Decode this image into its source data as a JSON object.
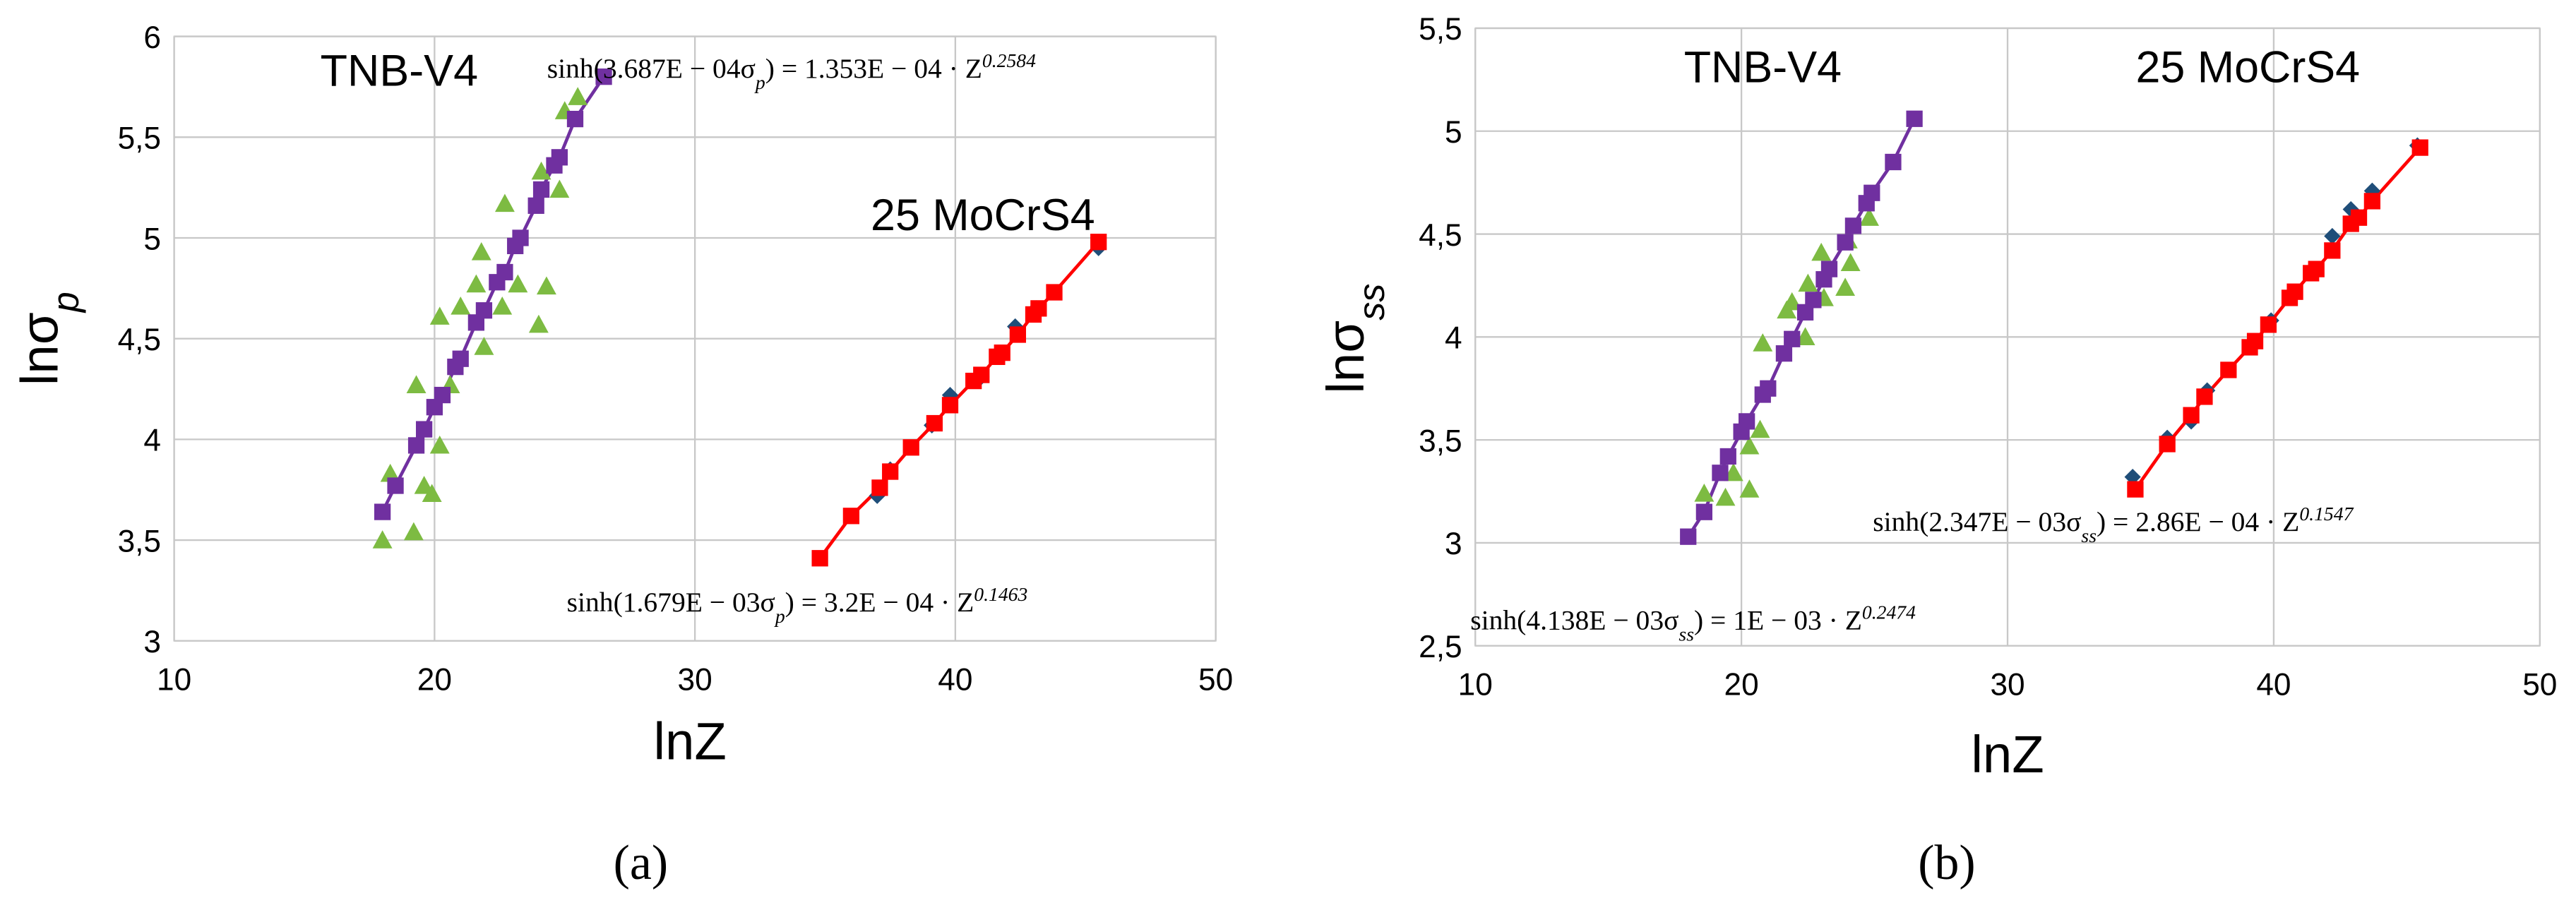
{
  "chart_data": [
    {
      "type": "scatter",
      "caption": "(a)",
      "x_label": [
        {
          "text": "lnZ"
        }
      ],
      "y_label": [
        {
          "text": "lnσ"
        },
        {
          "text": "p",
          "shift": "sub"
        }
      ],
      "annotations": [
        [
          {
            "text": "TNB-V4"
          }
        ],
        [
          {
            "text": "25 MoCrS4"
          }
        ],
        [
          {
            "text": "sinh(3.687E − 04σ"
          },
          {
            "text": "p",
            "shift": "sub"
          },
          {
            "text": ") = 1.353E − 04 · Z"
          },
          {
            "text": "0.2584",
            "shift": "sup"
          }
        ],
        [
          {
            "text": "sinh(1.679E − 03σ"
          },
          {
            "text": "p",
            "shift": "sub"
          },
          {
            "text": ") = 3.2E − 04 · Z"
          },
          {
            "text": "0.1463",
            "shift": "sup"
          }
        ]
      ],
      "xlim": [
        10,
        50
      ],
      "xticks": [
        10,
        20,
        30,
        40,
        50
      ],
      "ylim": [
        3,
        6
      ],
      "yticks": [
        3,
        {
          "value": 3.5,
          "label": "3,5"
        },
        4,
        {
          "value": 4.5,
          "label": "4,5"
        },
        5,
        {
          "value": 5.5,
          "label": "5,5"
        },
        6
      ],
      "grid": true,
      "series": [
        {
          "color": "#7dbb42",
          "marker": "triangle",
          "line": false,
          "x": [
            18,
            18.3,
            19.2,
            19.3,
            19.6,
            19.9,
            20.2,
            20.2,
            20.6,
            21,
            21.6,
            21.8,
            21.9,
            22.6,
            22.7,
            23.2,
            24,
            24.1,
            24.3,
            24.8,
            25,
            25.5
          ],
          "values": [
            3.5,
            3.83,
            3.54,
            4.27,
            3.77,
            3.73,
            3.97,
            4.61,
            4.27,
            4.66,
            4.77,
            4.93,
            4.46,
            4.66,
            5.17,
            4.77,
            4.57,
            5.33,
            4.76,
            5.24,
            5.63,
            5.7
          ]
        },
        {
          "color": "#7030a0",
          "marker": "square",
          "line": true,
          "x": [
            18,
            18.5,
            19.3,
            19.6,
            20,
            20.3,
            20.8,
            21,
            21.6,
            21.9,
            22.4,
            22.7,
            23.1,
            23.3,
            23.9,
            24.1,
            24.6,
            24.8,
            25.4,
            26.5
          ],
          "values": [
            3.64,
            3.77,
            3.97,
            4.05,
            4.16,
            4.22,
            4.36,
            4.4,
            4.58,
            4.64,
            4.78,
            4.83,
            4.96,
            5.0,
            5.16,
            5.24,
            5.36,
            5.4,
            5.59,
            5.8
          ]
        },
        {
          "color": "#1f4e79",
          "marker": "diamond",
          "line": false,
          "x": [
            37,
            37.5,
            39.1,
            39.8,
            41,
            41.7,
            42.3,
            43.1,
            45.5
          ],
          "values": [
            3.72,
            3.85,
            4.07,
            4.22,
            4.31,
            4.43,
            4.56,
            4.65,
            4.95
          ]
        },
        {
          "color": "#ff0000",
          "marker": "square",
          "line": true,
          "x": [
            34.8,
            36,
            37.1,
            37.5,
            38.3,
            39.2,
            39.8,
            40.7,
            41,
            41.6,
            41.8,
            42.4,
            43,
            43.2,
            43.8,
            45.5
          ],
          "values": [
            3.41,
            3.62,
            3.76,
            3.84,
            3.96,
            4.08,
            4.17,
            4.29,
            4.32,
            4.41,
            4.43,
            4.52,
            4.62,
            4.65,
            4.73,
            4.98
          ]
        }
      ]
    },
    {
      "type": "scatter",
      "caption": "(b)",
      "x_label": [
        {
          "text": "lnZ"
        }
      ],
      "y_label": [
        {
          "text": "lnσ"
        },
        {
          "text": "ss",
          "shift": "sub"
        }
      ],
      "annotations": [
        [
          {
            "text": "TNB-V4"
          }
        ],
        [
          {
            "text": "25 MoCrS4"
          }
        ],
        [
          {
            "text": "sinh(4.138E − 03σ"
          },
          {
            "text": "ss",
            "shift": "sub"
          },
          {
            "text": ") = 1E − 03 · Z"
          },
          {
            "text": "0.2474",
            "shift": "sup"
          }
        ],
        [
          {
            "text": "sinh(2.347E − 03σ"
          },
          {
            "text": "ss",
            "shift": "sub"
          },
          {
            "text": ") = 2.86E − 04 · Z"
          },
          {
            "text": "0.1547",
            "shift": "sup"
          }
        ]
      ],
      "xlim": [
        10,
        50
      ],
      "xticks": [
        10,
        20,
        30,
        40,
        50
      ],
      "ylim": [
        2.5,
        5.5
      ],
      "yticks": [
        {
          "value": 2.5,
          "label": "2,5"
        },
        3,
        {
          "value": 3.5,
          "label": "3,5"
        },
        4,
        {
          "value": 4.5,
          "label": "4,5"
        },
        5,
        {
          "value": 5.5,
          "label": "5,5"
        }
      ],
      "grid": true,
      "series": [
        {
          "color": "#7dbb42",
          "marker": "triangle",
          "line": false,
          "x": [
            18.6,
            19.4,
            19.7,
            20.3,
            20.3,
            20.7,
            20.8,
            21.7,
            21.9,
            22.4,
            22.5,
            23,
            23.1,
            23.9,
            24,
            24.1,
            24.8
          ],
          "values": [
            3.24,
            3.22,
            3.34,
            3.26,
            3.47,
            3.55,
            3.97,
            4.13,
            4.17,
            4.0,
            4.26,
            4.41,
            4.19,
            4.24,
            4.47,
            4.36,
            4.58
          ]
        },
        {
          "color": "#7030a0",
          "marker": "square",
          "line": true,
          "x": [
            18,
            18.6,
            19.2,
            19.5,
            20,
            20.2,
            20.8,
            21,
            21.6,
            21.9,
            22.4,
            22.7,
            23.1,
            23.3,
            23.9,
            24.2,
            24.7,
            24.9,
            25.7,
            26.5
          ],
          "values": [
            3.03,
            3.15,
            3.34,
            3.42,
            3.54,
            3.59,
            3.72,
            3.75,
            3.92,
            3.99,
            4.12,
            4.18,
            4.28,
            4.33,
            4.46,
            4.54,
            4.65,
            4.7,
            4.85,
            5.06
          ]
        },
        {
          "color": "#1f4e79",
          "marker": "diamond",
          "line": false,
          "x": [
            34.7,
            36,
            36.9,
            37.5,
            39.9,
            41.5,
            42.2,
            42.9,
            43.7,
            45.4
          ],
          "values": [
            3.32,
            3.51,
            3.59,
            3.74,
            4.08,
            4.33,
            4.49,
            4.62,
            4.71,
            4.93
          ]
        },
        {
          "color": "#ff0000",
          "marker": "square",
          "line": true,
          "x": [
            34.8,
            36,
            36.9,
            37.4,
            38.3,
            39.1,
            39.3,
            39.8,
            40.6,
            40.8,
            41.4,
            41.6,
            42.2,
            42.9,
            43.2,
            43.7,
            45.5
          ],
          "values": [
            3.26,
            3.48,
            3.62,
            3.71,
            3.84,
            3.95,
            3.98,
            4.06,
            4.19,
            4.22,
            4.31,
            4.33,
            4.42,
            4.55,
            4.58,
            4.66,
            4.92
          ]
        }
      ]
    }
  ]
}
